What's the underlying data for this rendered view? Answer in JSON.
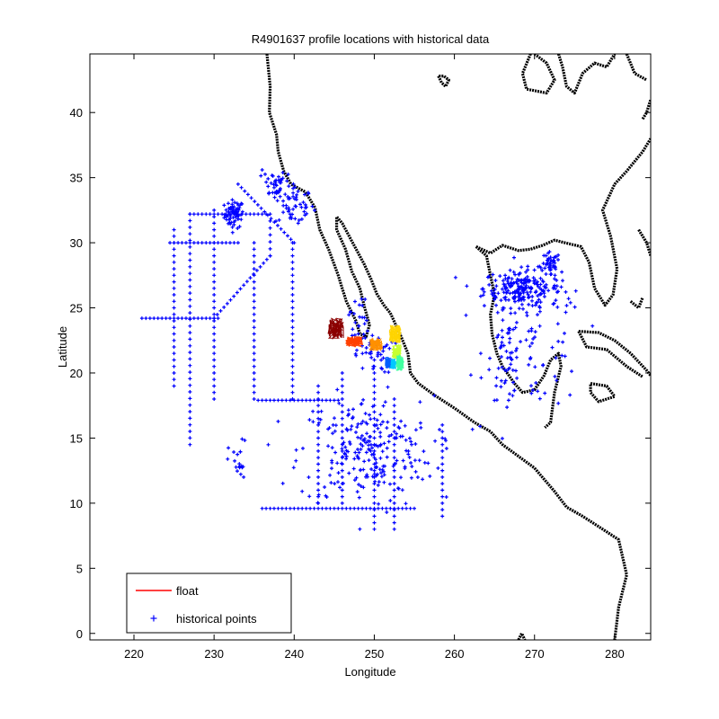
{
  "chart_data": {
    "type": "scatter",
    "title": "R4901637 profile locations with historical data",
    "xlabel": "Longitude",
    "ylabel": "Latitude",
    "xlim": [
      214.5,
      284.5
    ],
    "ylim": [
      -0.5,
      44.5
    ],
    "xticks": [
      220,
      230,
      240,
      250,
      260,
      270,
      280
    ],
    "yticks": [
      0,
      5,
      10,
      15,
      20,
      25,
      30,
      35,
      40
    ],
    "grid": false,
    "legend_position": "bottom-left",
    "colors": {
      "historical": "#0000ff",
      "float": "#ff0000",
      "coastline": "#000000"
    },
    "series": [
      {
        "name": "float",
        "style": "line",
        "color": "#ff0000",
        "colormap": "jet",
        "clusters": [
          {
            "lon": 245.2,
            "lat": 23.4,
            "color": "#8b0000",
            "spread": [
              1.2,
              1.0
            ]
          },
          {
            "lon": 247.5,
            "lat": 22.4,
            "color": "#ff4000",
            "spread": [
              1.3,
              0.5
            ]
          },
          {
            "lon": 250.2,
            "lat": 22.2,
            "color": "#ff9000",
            "spread": [
              1.0,
              0.6
            ]
          },
          {
            "lon": 252.6,
            "lat": 23.0,
            "color": "#ffd400",
            "spread": [
              0.9,
              0.9
            ]
          },
          {
            "lon": 252.8,
            "lat": 21.6,
            "color": "#c8ff30",
            "spread": [
              0.7,
              0.7
            ]
          },
          {
            "lon": 253.2,
            "lat": 20.8,
            "color": "#40ffa0",
            "spread": [
              0.6,
              0.8
            ]
          },
          {
            "lon": 252.3,
            "lat": 20.7,
            "color": "#00c8ff",
            "spread": [
              0.5,
              0.5
            ]
          },
          {
            "lon": 251.7,
            "lat": 20.8,
            "color": "#0060ff",
            "spread": [
              0.4,
              0.5
            ]
          }
        ]
      },
      {
        "name": "historical points",
        "style": "marker",
        "color": "#0000ff",
        "lines": [
          [
            227.0,
            32.2,
            236.5,
            32.2
          ],
          [
            224.5,
            30.0,
            233.0,
            30.0
          ],
          [
            221.0,
            24.2,
            230.5,
            24.2
          ],
          [
            225.0,
            31.0,
            225.0,
            19.0
          ],
          [
            227.0,
            32.2,
            227.0,
            14.5
          ],
          [
            230.0,
            32.5,
            230.0,
            18.0
          ],
          [
            237.0,
            32.2,
            237.0,
            29.0
          ],
          [
            237.0,
            29.0,
            230.0,
            24.2
          ],
          [
            235.0,
            30.0,
            235.0,
            18.0
          ],
          [
            235.5,
            17.9,
            245.5,
            17.9
          ],
          [
            239.8,
            30.0,
            239.8,
            18.0
          ],
          [
            236.0,
            9.6,
            255.0,
            9.6
          ],
          [
            250.0,
            21.0,
            250.0,
            8.0
          ],
          [
            246.0,
            20.0,
            246.0,
            10.0
          ],
          [
            243.0,
            19.0,
            243.0,
            10.0
          ],
          [
            258.5,
            16.0,
            258.5,
            9.0
          ],
          [
            252.5,
            18.0,
            252.5,
            8.0
          ],
          [
            233.0,
            34.5,
            240.0,
            30.0
          ],
          [
            236.0,
            35.6,
            240.5,
            31.5
          ]
        ],
        "clusters": [
          {
            "lon": 232.5,
            "lat": 32.2,
            "spread": [
              1.0,
              0.9
            ],
            "n": 70
          },
          {
            "lon": 240.0,
            "lat": 33.0,
            "spread": [
              2.0,
              1.5
            ],
            "n": 50
          },
          {
            "lon": 237.5,
            "lat": 34.5,
            "spread": [
              1.2,
              1.0
            ],
            "n": 30
          },
          {
            "lon": 268.5,
            "lat": 26.5,
            "spread": [
              4.0,
              1.2
            ],
            "n": 220
          },
          {
            "lon": 272.0,
            "lat": 28.3,
            "spread": [
              1.0,
              0.8
            ],
            "n": 40
          },
          {
            "lon": 270.0,
            "lat": 22.0,
            "spread": [
              5.0,
              4.0
            ],
            "n": 80
          },
          {
            "lon": 266.5,
            "lat": 21.0,
            "spread": [
              1.5,
              2.5
            ],
            "n": 40
          },
          {
            "lon": 249.0,
            "lat": 14.0,
            "spread": [
              7.0,
              3.5
            ],
            "n": 240
          },
          {
            "lon": 250.0,
            "lat": 21.5,
            "spread": [
              2.0,
              1.3
            ],
            "n": 40
          },
          {
            "lon": 248.0,
            "lat": 24.0,
            "spread": [
              1.0,
              2.0
            ],
            "n": 25
          },
          {
            "lon": 233.0,
            "lat": 13.0,
            "spread": [
              1.0,
              1.5
            ],
            "n": 20
          }
        ]
      }
    ],
    "coastlines": [
      [
        [
          236.6,
          44.5
        ],
        [
          237.0,
          42.0
        ],
        [
          236.9,
          40.0
        ],
        [
          237.8,
          38.3
        ],
        [
          238.0,
          37.0
        ],
        [
          238.7,
          35.5
        ],
        [
          239.6,
          34.5
        ],
        [
          241.4,
          33.9
        ],
        [
          242.6,
          32.7
        ],
        [
          243.2,
          31.0
        ],
        [
          244.3,
          29.5
        ],
        [
          245.5,
          27.5
        ],
        [
          246.5,
          25.5
        ],
        [
          247.7,
          24.0
        ],
        [
          248.2,
          23.0
        ],
        [
          249.0,
          22.8
        ],
        [
          249.4,
          23.7
        ],
        [
          248.8,
          25.0
        ],
        [
          248.2,
          26.5
        ],
        [
          247.2,
          27.8
        ],
        [
          246.4,
          29.5
        ],
        [
          245.3,
          31.0
        ],
        [
          245.3,
          32.0
        ],
        [
          246.0,
          31.5
        ],
        [
          247.3,
          30.0
        ],
        [
          248.7,
          28.4
        ],
        [
          249.6,
          27.2
        ],
        [
          250.3,
          26.1
        ],
        [
          251.2,
          25.2
        ],
        [
          252.0,
          24.6
        ],
        [
          253.2,
          23.0
        ],
        [
          254.2,
          21.5
        ],
        [
          254.5,
          20.0
        ],
        [
          255.5,
          19.2
        ],
        [
          257.5,
          18.3
        ],
        [
          260.0,
          17.3
        ],
        [
          262.5,
          16.2
        ],
        [
          264.5,
          15.5
        ],
        [
          266.0,
          14.5
        ],
        [
          268.0,
          13.6
        ],
        [
          270.0,
          12.7
        ],
        [
          272.5,
          10.9
        ],
        [
          274.0,
          9.7
        ],
        [
          276.0,
          9.0
        ],
        [
          278.0,
          8.2
        ],
        [
          280.5,
          7.2
        ],
        [
          281.5,
          4.5
        ],
        [
          280.5,
          2.0
        ],
        [
          280.0,
          -0.5
        ]
      ],
      [
        [
          262.7,
          29.7
        ],
        [
          264.0,
          29.0
        ],
        [
          264.5,
          27.5
        ],
        [
          265.0,
          26.0
        ],
        [
          264.5,
          24.5
        ],
        [
          264.7,
          23.0
        ],
        [
          265.3,
          21.5
        ],
        [
          266.0,
          20.5
        ],
        [
          267.5,
          19.2
        ],
        [
          268.5,
          18.5
        ],
        [
          270.0,
          18.7
        ],
        [
          271.2,
          19.8
        ],
        [
          272.0,
          21.0
        ],
        [
          273.0,
          21.5
        ],
        [
          273.3,
          20.5
        ],
        [
          272.5,
          18.5
        ],
        [
          272.0,
          16.2
        ],
        [
          271.3,
          15.8
        ]
      ],
      [
        [
          262.7,
          29.7
        ],
        [
          264.5,
          29.2
        ],
        [
          266.0,
          29.8
        ],
        [
          268.0,
          29.4
        ],
        [
          269.5,
          29.5
        ],
        [
          271.0,
          29.8
        ],
        [
          272.5,
          30.2
        ],
        [
          273.8,
          30.0
        ],
        [
          275.8,
          29.7
        ],
        [
          276.8,
          28.5
        ],
        [
          277.5,
          26.5
        ],
        [
          278.8,
          25.2
        ],
        [
          279.8,
          26.0
        ],
        [
          280.3,
          28.0
        ],
        [
          279.5,
          30.5
        ],
        [
          278.5,
          32.5
        ],
        [
          280.0,
          34.5
        ],
        [
          281.5,
          35.5
        ],
        [
          283.5,
          37.0
        ],
        [
          284.5,
          38.0
        ]
      ],
      [
        [
          275.5,
          23.2
        ],
        [
          278.0,
          23.1
        ],
        [
          280.0,
          22.5
        ],
        [
          282.0,
          21.5
        ],
        [
          284.0,
          20.2
        ],
        [
          284.5,
          19.8
        ]
      ],
      [
        [
          275.5,
          23.2
        ],
        [
          276.5,
          22.0
        ],
        [
          279.0,
          21.8
        ],
        [
          281.5,
          20.5
        ],
        [
          283.5,
          19.7
        ]
      ],
      [
        [
          277.0,
          19.2
        ],
        [
          279.0,
          19.0
        ],
        [
          280.0,
          18.2
        ],
        [
          278.0,
          17.8
        ],
        [
          277.0,
          18.5
        ],
        [
          277.0,
          19.2
        ]
      ],
      [
        [
          270.0,
          44.5
        ],
        [
          271.5,
          43.8
        ],
        [
          272.5,
          42.5
        ],
        [
          271.5,
          41.5
        ],
        [
          269.0,
          41.8
        ],
        [
          268.5,
          43.0
        ],
        [
          269.5,
          44.5
        ]
      ],
      [
        [
          273.0,
          44.5
        ],
        [
          273.5,
          43.5
        ],
        [
          274.0,
          42.0
        ],
        [
          275.0,
          41.5
        ],
        [
          276.0,
          43.0
        ],
        [
          277.5,
          43.8
        ],
        [
          279.0,
          43.5
        ],
        [
          280.0,
          44.5
        ]
      ],
      [
        [
          281.5,
          44.5
        ],
        [
          282.5,
          43.0
        ],
        [
          284.0,
          42.5
        ]
      ],
      [
        [
          258.0,
          42.8
        ],
        [
          258.4,
          42.3
        ],
        [
          258.9,
          42.0
        ],
        [
          259.3,
          42.5
        ],
        [
          258.7,
          42.8
        ],
        [
          258.0,
          42.8
        ]
      ],
      [
        [
          283.5,
          39.5
        ],
        [
          284.0,
          40.0
        ],
        [
          284.5,
          41.0
        ]
      ],
      [
        [
          283.0,
          31.0
        ],
        [
          284.0,
          30.0
        ],
        [
          284.5,
          29.0
        ]
      ],
      [
        [
          282.0,
          25.5
        ],
        [
          283.0,
          25.0
        ],
        [
          283.5,
          25.8
        ]
      ],
      [
        [
          268.0,
          -0.5
        ],
        [
          268.4,
          0.0
        ],
        [
          268.8,
          -0.5
        ]
      ]
    ],
    "legend": {
      "entries": [
        "float",
        "historical points"
      ]
    }
  }
}
